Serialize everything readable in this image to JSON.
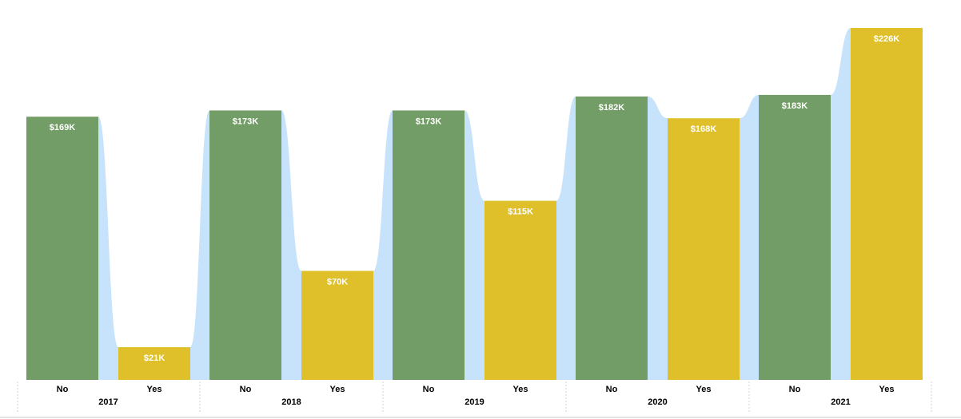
{
  "chart_data": {
    "type": "bar",
    "categories": [
      {
        "year": "2017",
        "sub": [
          "No",
          "Yes"
        ]
      },
      {
        "year": "2018",
        "sub": [
          "No",
          "Yes"
        ]
      },
      {
        "year": "2019",
        "sub": [
          "No",
          "Yes"
        ]
      },
      {
        "year": "2020",
        "sub": [
          "No",
          "Yes"
        ]
      },
      {
        "year": "2021",
        "sub": [
          "No",
          "Yes"
        ]
      }
    ],
    "values": [
      169,
      21,
      173,
      70,
      173,
      115,
      182,
      168,
      183,
      226
    ],
    "labels": [
      "$169K",
      "$21K",
      "$173K",
      "$70K",
      "$173K",
      "$115K",
      "$182K",
      "$168K",
      "$183K",
      "$226K"
    ],
    "unit": "$K",
    "ylim": [
      0,
      226
    ],
    "grid": false,
    "legend": "none",
    "colors": {
      "No": "#739d66",
      "Yes": "#dfc02a",
      "ribbon": "#c7e2fb"
    }
  }
}
